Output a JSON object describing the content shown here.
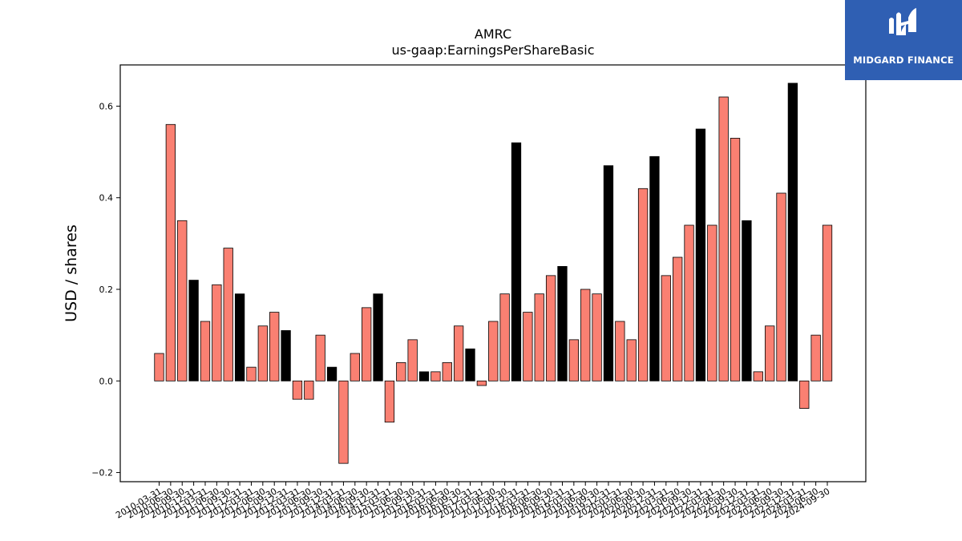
{
  "brand": {
    "name": "MIDGARD FINANCE",
    "bg_color": "#2f5fb3"
  },
  "chart_data": {
    "type": "bar",
    "title": "AMRC",
    "subtitle": "us-gaap:EarningsPerShareBasic",
    "xlabel": "",
    "ylabel": "USD / shares",
    "ylim": [
      -0.22,
      0.69
    ],
    "yticks": [
      -0.2,
      0.0,
      0.2,
      0.4,
      0.6
    ],
    "grid": false,
    "colors": {
      "quarterly": "#fa8072",
      "annual": "#000000",
      "edge": "#000000"
    },
    "categories": [
      "2010-03-31",
      "2010-06-30",
      "2010-09-30",
      "2010-12-31",
      "2011-03-31",
      "2011-06-30",
      "2011-09-30",
      "2011-12-31",
      "2012-03-31",
      "2012-06-30",
      "2012-09-30",
      "2012-12-31",
      "2013-03-31",
      "2013-06-30",
      "2013-09-30",
      "2013-12-31",
      "2014-03-31",
      "2014-06-30",
      "2014-09-30",
      "2014-12-31",
      "2015-03-31",
      "2015-06-30",
      "2015-09-30",
      "2015-12-31",
      "2016-03-31",
      "2016-06-30",
      "2016-09-30",
      "2016-12-31",
      "2017-03-31",
      "2017-06-30",
      "2017-09-30",
      "2017-12-31",
      "2018-03-31",
      "2018-06-30",
      "2018-09-30",
      "2018-12-31",
      "2019-03-31",
      "2019-06-30",
      "2019-09-30",
      "2019-12-31",
      "2020-03-31",
      "2020-06-30",
      "2020-09-30",
      "2020-12-31",
      "2021-03-31",
      "2021-06-30",
      "2021-09-30",
      "2021-12-31",
      "2022-03-31",
      "2022-06-30",
      "2022-09-30",
      "2022-12-31",
      "2023-03-31",
      "2023-06-30",
      "2023-09-30",
      "2023-12-31",
      "2024-03-31",
      "2024-06-30",
      "2024-09-30"
    ],
    "values": [
      0.06,
      0.56,
      0.35,
      0.22,
      0.13,
      0.21,
      0.29,
      0.19,
      0.03,
      0.12,
      0.15,
      0.11,
      -0.04,
      -0.04,
      0.1,
      0.03,
      -0.18,
      0.06,
      0.16,
      0.19,
      -0.09,
      0.04,
      0.09,
      0.02,
      0.02,
      0.04,
      0.12,
      0.07,
      -0.01,
      0.13,
      0.19,
      0.52,
      0.15,
      0.19,
      0.23,
      0.25,
      0.09,
      0.2,
      0.19,
      0.47,
      0.13,
      0.09,
      0.42,
      0.49,
      0.23,
      0.27,
      0.34,
      0.55,
      0.34,
      0.62,
      0.53,
      0.35,
      0.02,
      0.12,
      0.41,
      0.65,
      -0.06,
      0.1,
      0.34
    ],
    "annual": [
      false,
      false,
      false,
      true,
      false,
      false,
      false,
      true,
      false,
      false,
      false,
      true,
      false,
      false,
      false,
      true,
      false,
      false,
      false,
      true,
      false,
      false,
      false,
      true,
      false,
      false,
      false,
      true,
      false,
      false,
      false,
      true,
      false,
      false,
      false,
      true,
      false,
      false,
      false,
      true,
      false,
      false,
      false,
      true,
      false,
      false,
      false,
      true,
      false,
      false,
      false,
      true,
      false,
      false,
      false,
      true,
      false,
      false,
      false
    ]
  }
}
